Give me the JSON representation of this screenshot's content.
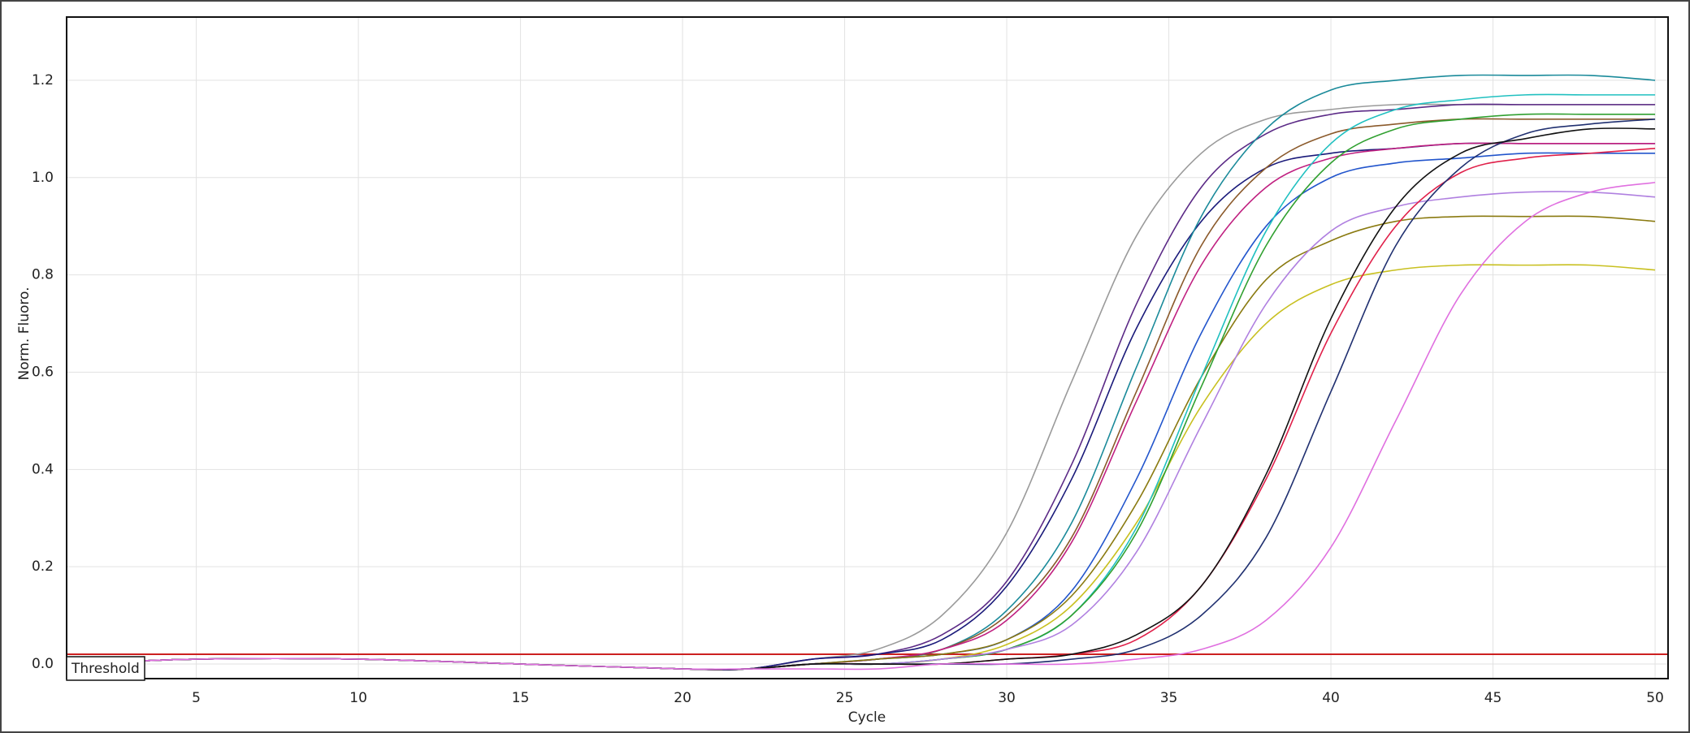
{
  "chart_data": {
    "type": "line",
    "x_label": "Cycle",
    "y_label": "Norm. Fluoro.",
    "xlim": [
      1,
      50.4
    ],
    "ylim": [
      -0.03,
      1.33
    ],
    "xticks": [
      5,
      10,
      15,
      20,
      25,
      30,
      35,
      40,
      45,
      50
    ],
    "yticks": [
      {
        "value": 0,
        "label": "0.0"
      },
      0.2,
      0.4,
      0.6,
      0.8,
      {
        "value": 1,
        "label": "1.0"
      },
      1.2
    ],
    "grid": true,
    "threshold": {
      "label": "Threshold",
      "value": 0.02,
      "color": "#cc2020"
    },
    "x": [
      1,
      5,
      10,
      15,
      20,
      22,
      24,
      26,
      28,
      30,
      32,
      34,
      36,
      38,
      40,
      42,
      44,
      46,
      48,
      50
    ],
    "series": [
      {
        "color": "#9a9a9a",
        "values": [
          0,
          0.01,
          0.01,
          0,
          -0.01,
          -0.01,
          0.01,
          0.03,
          0.1,
          0.27,
          0.58,
          0.88,
          1.05,
          1.12,
          1.14,
          1.15,
          1.15,
          1.15,
          1.15,
          1.15
        ]
      },
      {
        "color": "#5b2a86",
        "values": [
          0,
          0.01,
          0.01,
          0,
          -0.01,
          -0.01,
          0.01,
          0.02,
          0.06,
          0.17,
          0.41,
          0.74,
          0.98,
          1.09,
          1.13,
          1.14,
          1.15,
          1.15,
          1.15,
          1.15
        ]
      },
      {
        "color": "#1a1a7a",
        "values": [
          0,
          0.01,
          0.01,
          0,
          -0.01,
          -0.01,
          0.01,
          0.02,
          0.05,
          0.16,
          0.38,
          0.69,
          0.91,
          1.02,
          1.05,
          1.06,
          1.07,
          1.07,
          1.07,
          1.07
        ]
      },
      {
        "color": "#1a8a9a",
        "values": [
          0,
          0.01,
          0.01,
          0,
          -0.01,
          -0.01,
          0,
          0.01,
          0.03,
          0.11,
          0.29,
          0.61,
          0.92,
          1.1,
          1.18,
          1.2,
          1.21,
          1.21,
          1.21,
          1.2
        ]
      },
      {
        "color": "#8b5a2b",
        "values": [
          0,
          0.01,
          0.01,
          0,
          -0.01,
          -0.01,
          0,
          0.01,
          0.03,
          0.1,
          0.26,
          0.56,
          0.86,
          1.02,
          1.09,
          1.11,
          1.12,
          1.12,
          1.12,
          1.12
        ]
      },
      {
        "color": "#c02080",
        "values": [
          0,
          0.01,
          0.01,
          0,
          -0.01,
          -0.01,
          0,
          0.01,
          0.03,
          0.09,
          0.25,
          0.54,
          0.82,
          0.98,
          1.04,
          1.06,
          1.07,
          1.07,
          1.07,
          1.07
        ]
      },
      {
        "color": "#2255cc",
        "values": [
          0,
          0.01,
          0.01,
          0,
          -0.01,
          -0.01,
          0,
          0.01,
          0.02,
          0.05,
          0.15,
          0.38,
          0.68,
          0.9,
          1.0,
          1.03,
          1.04,
          1.05,
          1.05,
          1.05
        ]
      },
      {
        "color": "#8a7a10",
        "values": [
          0,
          0.01,
          0.01,
          0,
          -0.01,
          -0.01,
          0,
          0.01,
          0.02,
          0.05,
          0.14,
          0.33,
          0.59,
          0.79,
          0.87,
          0.91,
          0.92,
          0.92,
          0.92,
          0.91
        ]
      },
      {
        "color": "#c8c020",
        "values": [
          0,
          0.01,
          0.01,
          0,
          -0.01,
          -0.01,
          0,
          0,
          0.01,
          0.04,
          0.12,
          0.29,
          0.53,
          0.7,
          0.78,
          0.81,
          0.82,
          0.82,
          0.82,
          0.81
        ]
      },
      {
        "color": "#20c0c0",
        "values": [
          0,
          0.01,
          0.01,
          0,
          -0.01,
          -0.01,
          0,
          0,
          0.01,
          0.03,
          0.1,
          0.28,
          0.59,
          0.89,
          1.07,
          1.14,
          1.16,
          1.17,
          1.17,
          1.17
        ]
      },
      {
        "color": "#30a030",
        "values": [
          0,
          0.01,
          0.01,
          0,
          -0.01,
          -0.01,
          0,
          0,
          0.01,
          0.03,
          0.1,
          0.27,
          0.57,
          0.86,
          1.03,
          1.1,
          1.12,
          1.13,
          1.13,
          1.13
        ]
      },
      {
        "color": "#b080e0",
        "values": [
          0,
          0.01,
          0.01,
          0,
          -0.01,
          -0.01,
          0,
          0,
          0.01,
          0.03,
          0.08,
          0.23,
          0.49,
          0.74,
          0.89,
          0.94,
          0.96,
          0.97,
          0.97,
          0.96
        ]
      },
      {
        "color": "#e0204a",
        "values": [
          0,
          0.01,
          0.01,
          0,
          -0.01,
          -0.01,
          0,
          0,
          0,
          0.01,
          0.02,
          0.05,
          0.16,
          0.38,
          0.68,
          0.9,
          1.01,
          1.04,
          1.05,
          1.06
        ]
      },
      {
        "color": "#203070",
        "values": [
          0,
          0.01,
          0.01,
          0,
          -0.01,
          -0.01,
          0,
          0,
          0,
          0,
          0.01,
          0.03,
          0.1,
          0.26,
          0.56,
          0.86,
          1.02,
          1.09,
          1.11,
          1.12
        ]
      },
      {
        "color": "#111111",
        "values": [
          0,
          0.01,
          0.01,
          0,
          -0.01,
          -0.01,
          0,
          0,
          0,
          0.01,
          0.02,
          0.06,
          0.16,
          0.39,
          0.71,
          0.94,
          1.05,
          1.08,
          1.1,
          1.1
        ]
      },
      {
        "color": "#e070e0",
        "values": [
          0,
          0.01,
          0.01,
          0,
          -0.01,
          -0.01,
          -0.01,
          -0.01,
          0,
          0,
          0,
          0.01,
          0.03,
          0.09,
          0.24,
          0.5,
          0.76,
          0.91,
          0.97,
          0.99
        ]
      }
    ]
  }
}
